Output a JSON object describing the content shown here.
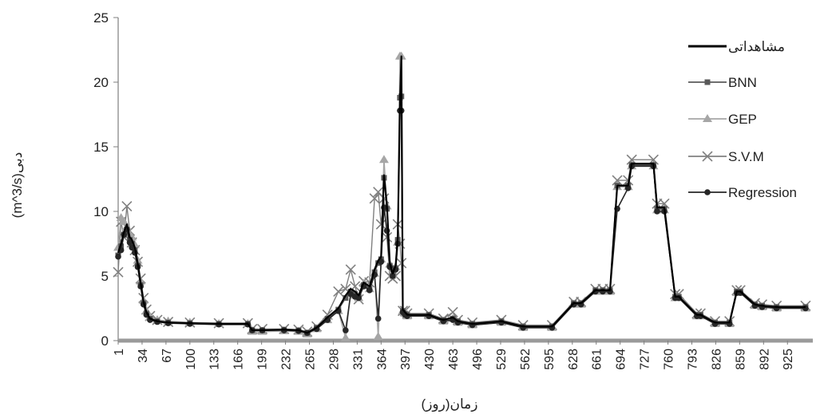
{
  "chart_data": {
    "type": "line",
    "xlabel": "زمان(روز)",
    "ylabel": "(m^3/s)دبی",
    "xlim": [
      1,
      960
    ],
    "ylim": [
      0,
      25
    ],
    "grid": false,
    "legend_position": "right",
    "x_ticks": [
      1,
      34,
      67,
      100,
      133,
      166,
      199,
      232,
      265,
      298,
      331,
      364,
      397,
      430,
      463,
      496,
      529,
      562,
      595,
      628,
      661,
      694,
      727,
      760,
      793,
      826,
      859,
      892,
      925
    ],
    "y_ticks": [
      0,
      5,
      10,
      15,
      20,
      25
    ],
    "x": [
      1,
      5,
      9,
      13,
      17,
      20,
      24,
      28,
      32,
      36,
      40,
      45,
      55,
      70,
      100,
      140,
      180,
      186,
      200,
      230,
      250,
      262,
      275,
      290,
      305,
      315,
      322,
      328,
      333,
      340,
      348,
      355,
      360,
      364,
      368,
      372,
      376,
      380,
      384,
      387,
      390,
      392,
      394,
      397,
      400,
      430,
      450,
      463,
      470,
      490,
      530,
      560,
      600,
      630,
      640,
      660,
      670,
      680,
      690,
      705,
      710,
      740,
      745,
      755,
      770,
      775,
      800,
      805,
      825,
      845,
      855,
      860,
      880,
      890,
      910,
      950
    ],
    "series": [
      {
        "name": "مشاهداتی",
        "values": [
          6.8,
          7.5,
          8.4,
          9.0,
          8.0,
          7.8,
          7.2,
          6.0,
          4.5,
          3.0,
          2.2,
          1.7,
          1.5,
          1.4,
          1.35,
          1.3,
          1.3,
          0.8,
          0.8,
          0.85,
          0.8,
          0.6,
          1.0,
          1.8,
          2.5,
          3.5,
          4.0,
          3.8,
          3.5,
          4.5,
          4.2,
          5.5,
          6.2,
          6.5,
          12.8,
          10.5,
          6.0,
          5.2,
          5.8,
          8.0,
          18.5,
          22.0,
          2.4,
          2.2,
          2.0,
          2.0,
          1.6,
          1.8,
          1.5,
          1.3,
          1.5,
          1.1,
          1.1,
          2.9,
          2.9,
          3.9,
          3.9,
          3.9,
          12.0,
          12.0,
          13.7,
          13.7,
          10.3,
          10.3,
          3.4,
          3.4,
          2.0,
          2.0,
          1.4,
          1.4,
          3.8,
          3.8,
          2.8,
          2.7,
          2.6,
          2.6
        ]
      },
      {
        "name": "BNN",
        "values": [
          6.6,
          7.3,
          8.2,
          8.6,
          7.8,
          7.5,
          7.0,
          5.8,
          4.3,
          2.9,
          2.1,
          1.7,
          1.5,
          1.4,
          1.35,
          1.3,
          1.3,
          0.8,
          0.8,
          0.85,
          0.8,
          0.6,
          1.0,
          1.7,
          2.4,
          3.3,
          3.8,
          3.6,
          3.4,
          4.3,
          4.0,
          5.3,
          6.0,
          6.3,
          12.6,
          10.2,
          5.8,
          5.0,
          5.6,
          7.8,
          18.8,
          18.9,
          2.3,
          2.1,
          2.0,
          2.0,
          1.6,
          1.7,
          1.5,
          1.3,
          1.5,
          1.1,
          1.1,
          2.9,
          2.9,
          3.9,
          3.9,
          3.9,
          12.0,
          12.0,
          13.6,
          13.6,
          10.2,
          10.2,
          3.4,
          3.4,
          2.0,
          2.0,
          1.4,
          1.4,
          3.8,
          3.8,
          2.8,
          2.7,
          2.6,
          2.6
        ]
      },
      {
        "name": "GEP",
        "values": [
          7.2,
          9.5,
          9.2,
          8.8,
          8.2,
          8.0,
          7.4,
          6.2,
          4.6,
          3.1,
          2.3,
          1.8,
          1.6,
          1.5,
          1.4,
          1.3,
          1.3,
          0.7,
          0.7,
          0.75,
          0.7,
          0.5,
          0.9,
          1.6,
          2.3,
          0.2,
          3.8,
          3.5,
          3.3,
          4.4,
          4.0,
          5.2,
          0.3,
          6.3,
          14.0,
          10.4,
          5.9,
          5.1,
          5.7,
          7.6,
          22.0,
          22.0,
          2.3,
          2.1,
          1.9,
          1.9,
          1.5,
          1.7,
          1.4,
          1.2,
          1.4,
          1.0,
          1.0,
          2.8,
          2.8,
          3.8,
          3.8,
          3.8,
          11.9,
          11.9,
          13.5,
          13.5,
          10.1,
          10.1,
          3.3,
          3.3,
          1.9,
          1.9,
          1.3,
          1.3,
          3.7,
          3.7,
          2.7,
          2.6,
          2.5,
          2.5
        ]
      },
      {
        "name": "S.V.M",
        "values": [
          5.3,
          9.2,
          8.0,
          10.4,
          8.5,
          7.6,
          7.0,
          6.1,
          4.8,
          3.3,
          2.4,
          1.9,
          1.6,
          1.45,
          1.4,
          1.35,
          1.35,
          0.9,
          0.9,
          0.9,
          0.85,
          0.7,
          1.1,
          2.0,
          3.8,
          4.0,
          5.5,
          4.2,
          3.2,
          4.6,
          4.5,
          11.0,
          11.5,
          9.0,
          11.0,
          8.0,
          5.0,
          4.8,
          5.0,
          9.0,
          7.5,
          6.0,
          2.3,
          2.3,
          2.1,
          2.1,
          1.7,
          2.2,
          1.6,
          1.4,
          1.6,
          1.2,
          1.2,
          3.0,
          3.0,
          4.0,
          4.0,
          4.0,
          12.4,
          12.4,
          14.0,
          14.0,
          10.6,
          10.6,
          3.6,
          3.6,
          2.1,
          2.1,
          1.5,
          1.5,
          3.9,
          3.9,
          2.9,
          2.8,
          2.7,
          2.7
        ]
      },
      {
        "name": "Regression",
        "values": [
          6.5,
          7.0,
          8.2,
          8.6,
          7.6,
          7.2,
          6.8,
          5.7,
          4.2,
          2.8,
          2.0,
          1.6,
          1.45,
          1.35,
          1.3,
          1.25,
          1.25,
          0.8,
          0.8,
          0.8,
          0.75,
          0.6,
          0.9,
          1.6,
          2.3,
          0.8,
          3.6,
          3.4,
          3.3,
          4.2,
          3.9,
          5.1,
          1.7,
          6.1,
          10.3,
          8.5,
          5.7,
          5.0,
          5.5,
          7.5,
          17.8,
          17.8,
          2.2,
          2.0,
          1.9,
          1.9,
          1.5,
          1.6,
          1.4,
          1.2,
          1.4,
          1.0,
          1.0,
          2.8,
          2.8,
          3.8,
          3.8,
          3.8,
          10.2,
          11.8,
          13.5,
          13.5,
          10.0,
          10.0,
          3.3,
          3.3,
          1.9,
          1.9,
          1.3,
          1.3,
          3.7,
          3.7,
          2.7,
          2.6,
          2.5,
          2.5
        ]
      }
    ],
    "colors": {
      "مشاهداتی": "#000000",
      "BNN": "#595959",
      "GEP": "#a6a6a6",
      "S.V.M": "#808080",
      "Regression": "#262626"
    },
    "markers": {
      "مشاهداتی": "none",
      "BNN": "square",
      "GEP": "triangle",
      "S.V.M": "x",
      "Regression": "circle"
    }
  }
}
